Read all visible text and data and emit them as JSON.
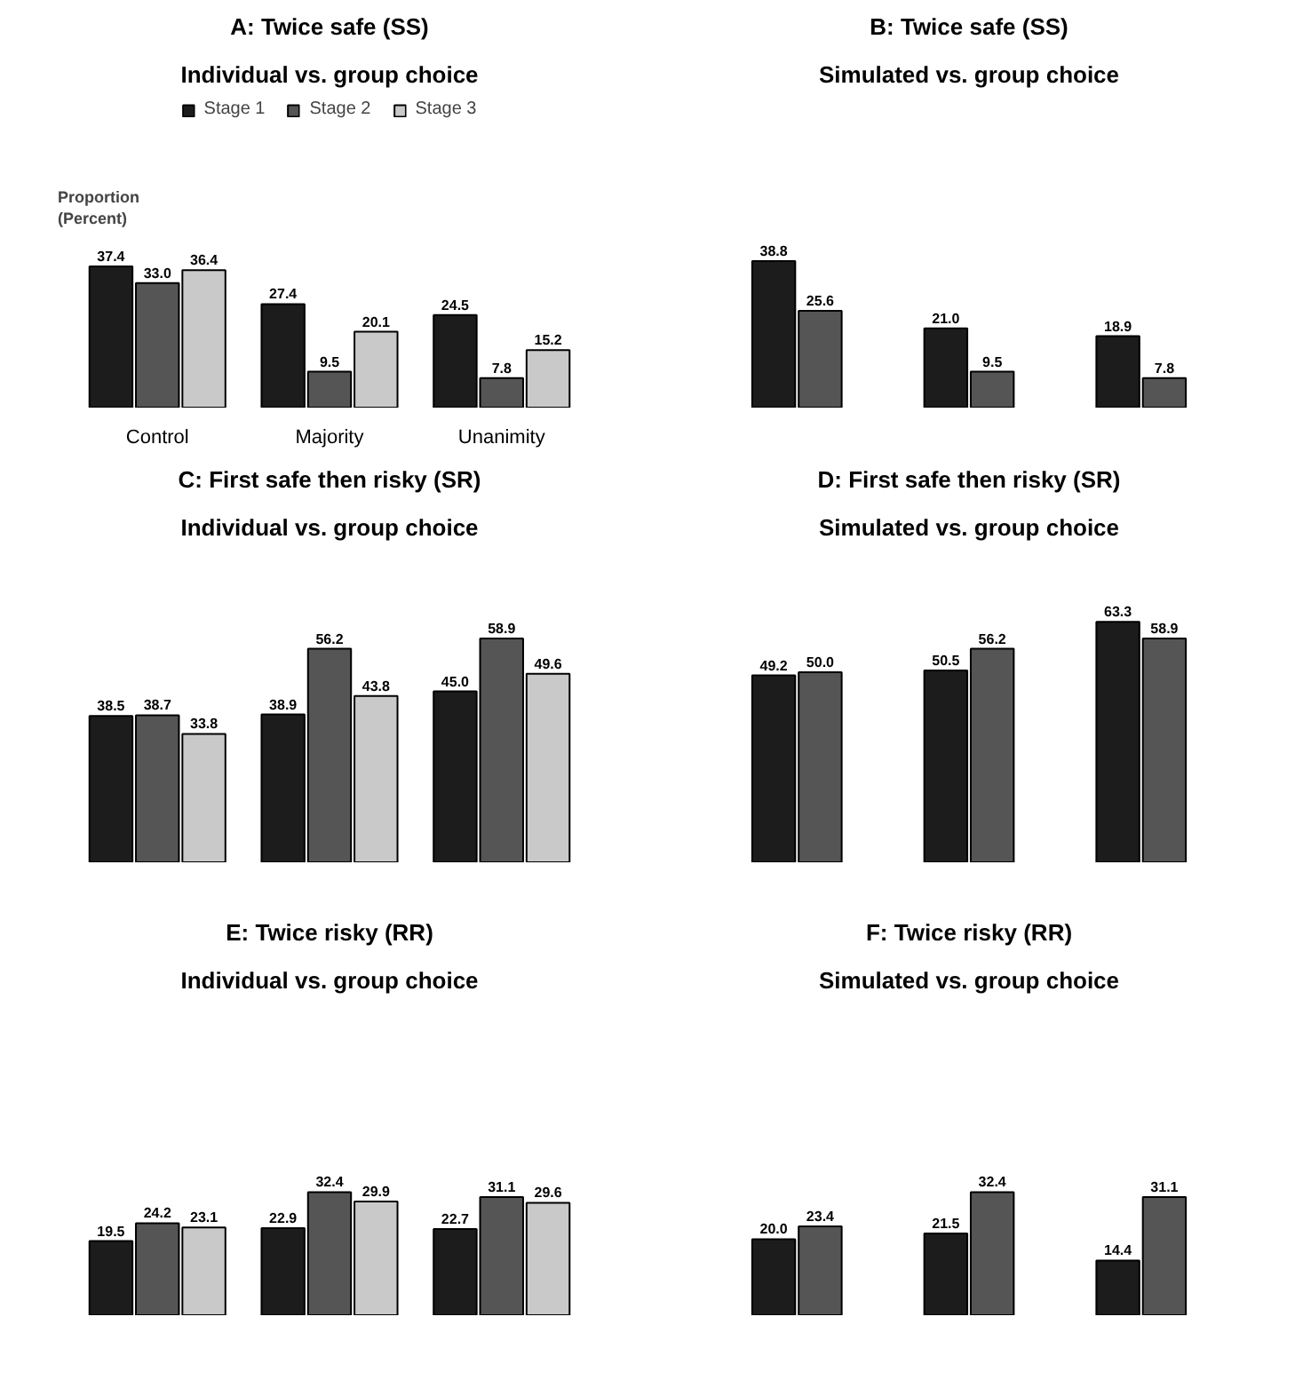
{
  "chart_data": [
    {
      "type": "bar",
      "title": "A: Twice safe (SS)",
      "subtitle": "Individual vs. group choice",
      "ylabel": "Proportion (Percent)",
      "categories": [
        "Control",
        "Majority",
        "Unanimity"
      ],
      "legend": "top",
      "series": [
        {
          "name": "Stage 1",
          "color": "#1c1c1c",
          "values": [
            37.4,
            27.4,
            24.5
          ],
          "value_labels": [
            "37.4",
            "27.4",
            "24.5"
          ]
        },
        {
          "name": "Stage 2",
          "color": "#555555",
          "values": [
            33.0,
            9.5,
            7.8
          ],
          "value_labels": [
            "33.0",
            "9.5",
            "7.8"
          ]
        },
        {
          "name": "Stage 3",
          "color": "#c9c9c9",
          "values": [
            36.4,
            20.1,
            15.2
          ],
          "value_labels": [
            "36.4",
            "20.1",
            "15.2"
          ]
        }
      ]
    },
    {
      "type": "bar",
      "title": "B: Twice safe (SS)",
      "subtitle": "Simulated vs. group choice",
      "categories": [
        null,
        null,
        null
      ],
      "series": [
        {
          "color": "#1c1c1c",
          "values": [
            38.8,
            21.0,
            18.9
          ],
          "value_labels": [
            "38.8",
            "21.0",
            "18.9"
          ]
        },
        {
          "color": "#555555",
          "values": [
            25.6,
            9.5,
            7.8
          ],
          "value_labels": [
            "25.6",
            "9.5",
            "7.8"
          ]
        }
      ]
    },
    {
      "type": "bar",
      "title": "C: First safe then risky (SR)",
      "subtitle": "Individual vs. group choice",
      "categories": [
        null,
        null,
        null
      ],
      "series": [
        {
          "color": "#1c1c1c",
          "values": [
            38.5,
            38.9,
            45.0
          ],
          "value_labels": [
            "38.5",
            "38.9",
            "45.0"
          ]
        },
        {
          "color": "#555555",
          "values": [
            38.7,
            56.2,
            58.9
          ],
          "value_labels": [
            "38.7",
            "56.2",
            "58.9"
          ]
        },
        {
          "color": "#c9c9c9",
          "values": [
            33.8,
            43.8,
            49.6
          ],
          "value_labels": [
            "33.8",
            "43.8",
            "49.6"
          ]
        }
      ]
    },
    {
      "type": "bar",
      "title": "D: First safe then risky (SR)",
      "subtitle": "Simulated vs. group choice",
      "categories": [
        null,
        null,
        null
      ],
      "series": [
        {
          "color": "#1c1c1c",
          "values": [
            49.2,
            50.5,
            63.3
          ],
          "value_labels": [
            "49.2",
            "50.5",
            "63.3"
          ]
        },
        {
          "color": "#555555",
          "values": [
            50.0,
            56.2,
            58.9
          ],
          "value_labels": [
            "50.0",
            "56.2",
            "58.9"
          ]
        }
      ]
    },
    {
      "type": "bar",
      "title": "E: Twice risky (RR)",
      "subtitle": "Individual vs. group choice",
      "categories": [
        null,
        null,
        null
      ],
      "series": [
        {
          "color": "#1c1c1c",
          "values": [
            19.5,
            22.9,
            22.7
          ],
          "value_labels": [
            "19.5",
            "22.9",
            "22.7"
          ]
        },
        {
          "color": "#555555",
          "values": [
            24.2,
            32.4,
            31.1
          ],
          "value_labels": [
            "24.2",
            "32.4",
            "31.1"
          ]
        },
        {
          "color": "#c9c9c9",
          "values": [
            23.1,
            29.9,
            29.6
          ],
          "value_labels": [
            "23.1",
            "29.9",
            "29.6"
          ]
        }
      ]
    },
    {
      "type": "bar",
      "title": "F: Twice risky (RR)",
      "subtitle": "Simulated vs. group choice",
      "categories": [
        null,
        null,
        null
      ],
      "series": [
        {
          "color": "#1c1c1c",
          "values": [
            20.0,
            21.5,
            14.4
          ],
          "value_labels": [
            "20.0",
            "21.5",
            "14.4"
          ]
        },
        {
          "color": "#555555",
          "values": [
            23.4,
            32.4,
            31.1
          ],
          "value_labels": [
            "23.4",
            "32.4",
            "31.1"
          ]
        }
      ]
    }
  ]
}
